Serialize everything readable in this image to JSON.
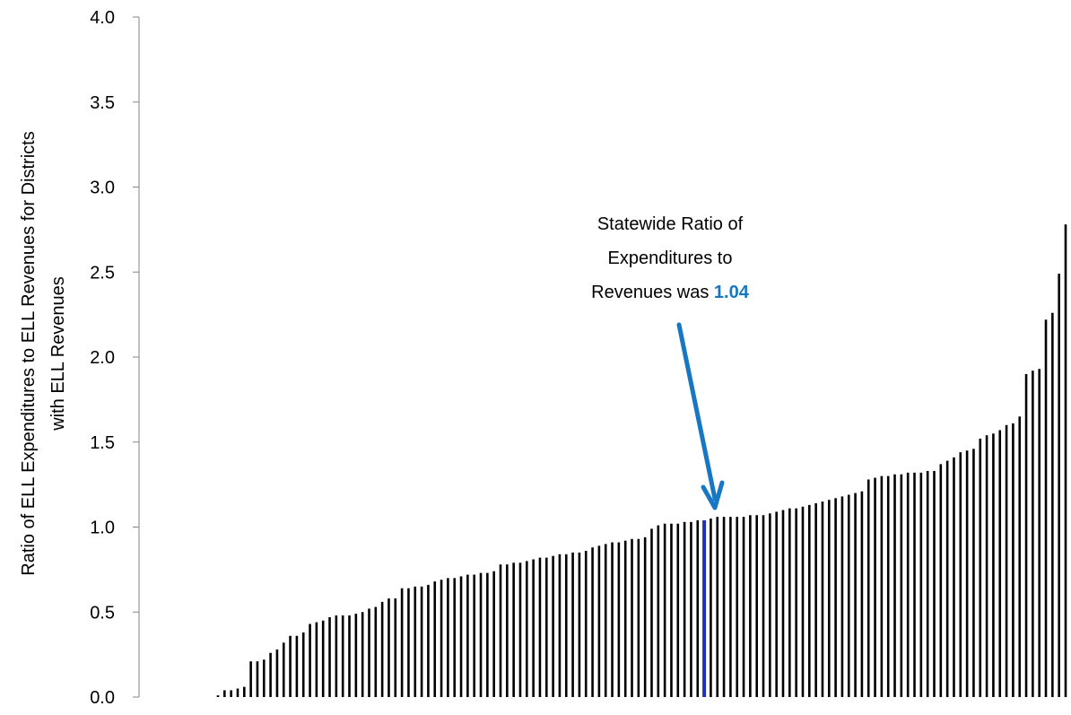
{
  "chart_data": {
    "type": "bar",
    "title": "",
    "xlabel": "",
    "ylabel_lines": [
      "Ratio of ELL Expenditures to ELL Revenues for Districts",
      "with ELL Revenues"
    ],
    "ylim": [
      0,
      4.0
    ],
    "yticks": [
      "0.0",
      "0.5",
      "1.0",
      "1.5",
      "2.0",
      "2.5",
      "3.0",
      "3.5",
      "4.0"
    ],
    "grid": false,
    "legend": "none",
    "bar_color": "#000000",
    "highlight_color": "#1f2fbf",
    "highlight_index": 74,
    "values": [
      0.01,
      0.04,
      0.04,
      0.05,
      0.06,
      0.21,
      0.21,
      0.22,
      0.26,
      0.28,
      0.32,
      0.36,
      0.36,
      0.38,
      0.43,
      0.44,
      0.45,
      0.47,
      0.48,
      0.48,
      0.48,
      0.49,
      0.5,
      0.52,
      0.53,
      0.56,
      0.58,
      0.58,
      0.64,
      0.64,
      0.65,
      0.65,
      0.66,
      0.68,
      0.69,
      0.7,
      0.7,
      0.71,
      0.72,
      0.72,
      0.73,
      0.73,
      0.74,
      0.78,
      0.78,
      0.79,
      0.79,
      0.8,
      0.81,
      0.82,
      0.82,
      0.83,
      0.84,
      0.84,
      0.85,
      0.85,
      0.86,
      0.88,
      0.89,
      0.9,
      0.91,
      0.91,
      0.92,
      0.93,
      0.93,
      0.94,
      0.99,
      1.01,
      1.02,
      1.02,
      1.02,
      1.03,
      1.03,
      1.04,
      1.04,
      1.05,
      1.06,
      1.06,
      1.06,
      1.06,
      1.06,
      1.07,
      1.07,
      1.07,
      1.08,
      1.09,
      1.1,
      1.11,
      1.11,
      1.12,
      1.13,
      1.14,
      1.15,
      1.16,
      1.17,
      1.18,
      1.19,
      1.2,
      1.21,
      1.28,
      1.29,
      1.3,
      1.3,
      1.31,
      1.31,
      1.32,
      1.32,
      1.32,
      1.33,
      1.33,
      1.37,
      1.39,
      1.41,
      1.44,
      1.45,
      1.46,
      1.52,
      1.54,
      1.55,
      1.57,
      1.6,
      1.61,
      1.65,
      1.9,
      1.92,
      1.93,
      2.22,
      2.26,
      2.49,
      2.78
    ],
    "annotation": {
      "lines": [
        "Statewide Ratio of",
        "Expenditures to"
      ],
      "last_line_prefix": "Revenues was ",
      "value_text": "1.04",
      "value_color": "#1777c2",
      "arrow_color": "#1777c2"
    }
  }
}
